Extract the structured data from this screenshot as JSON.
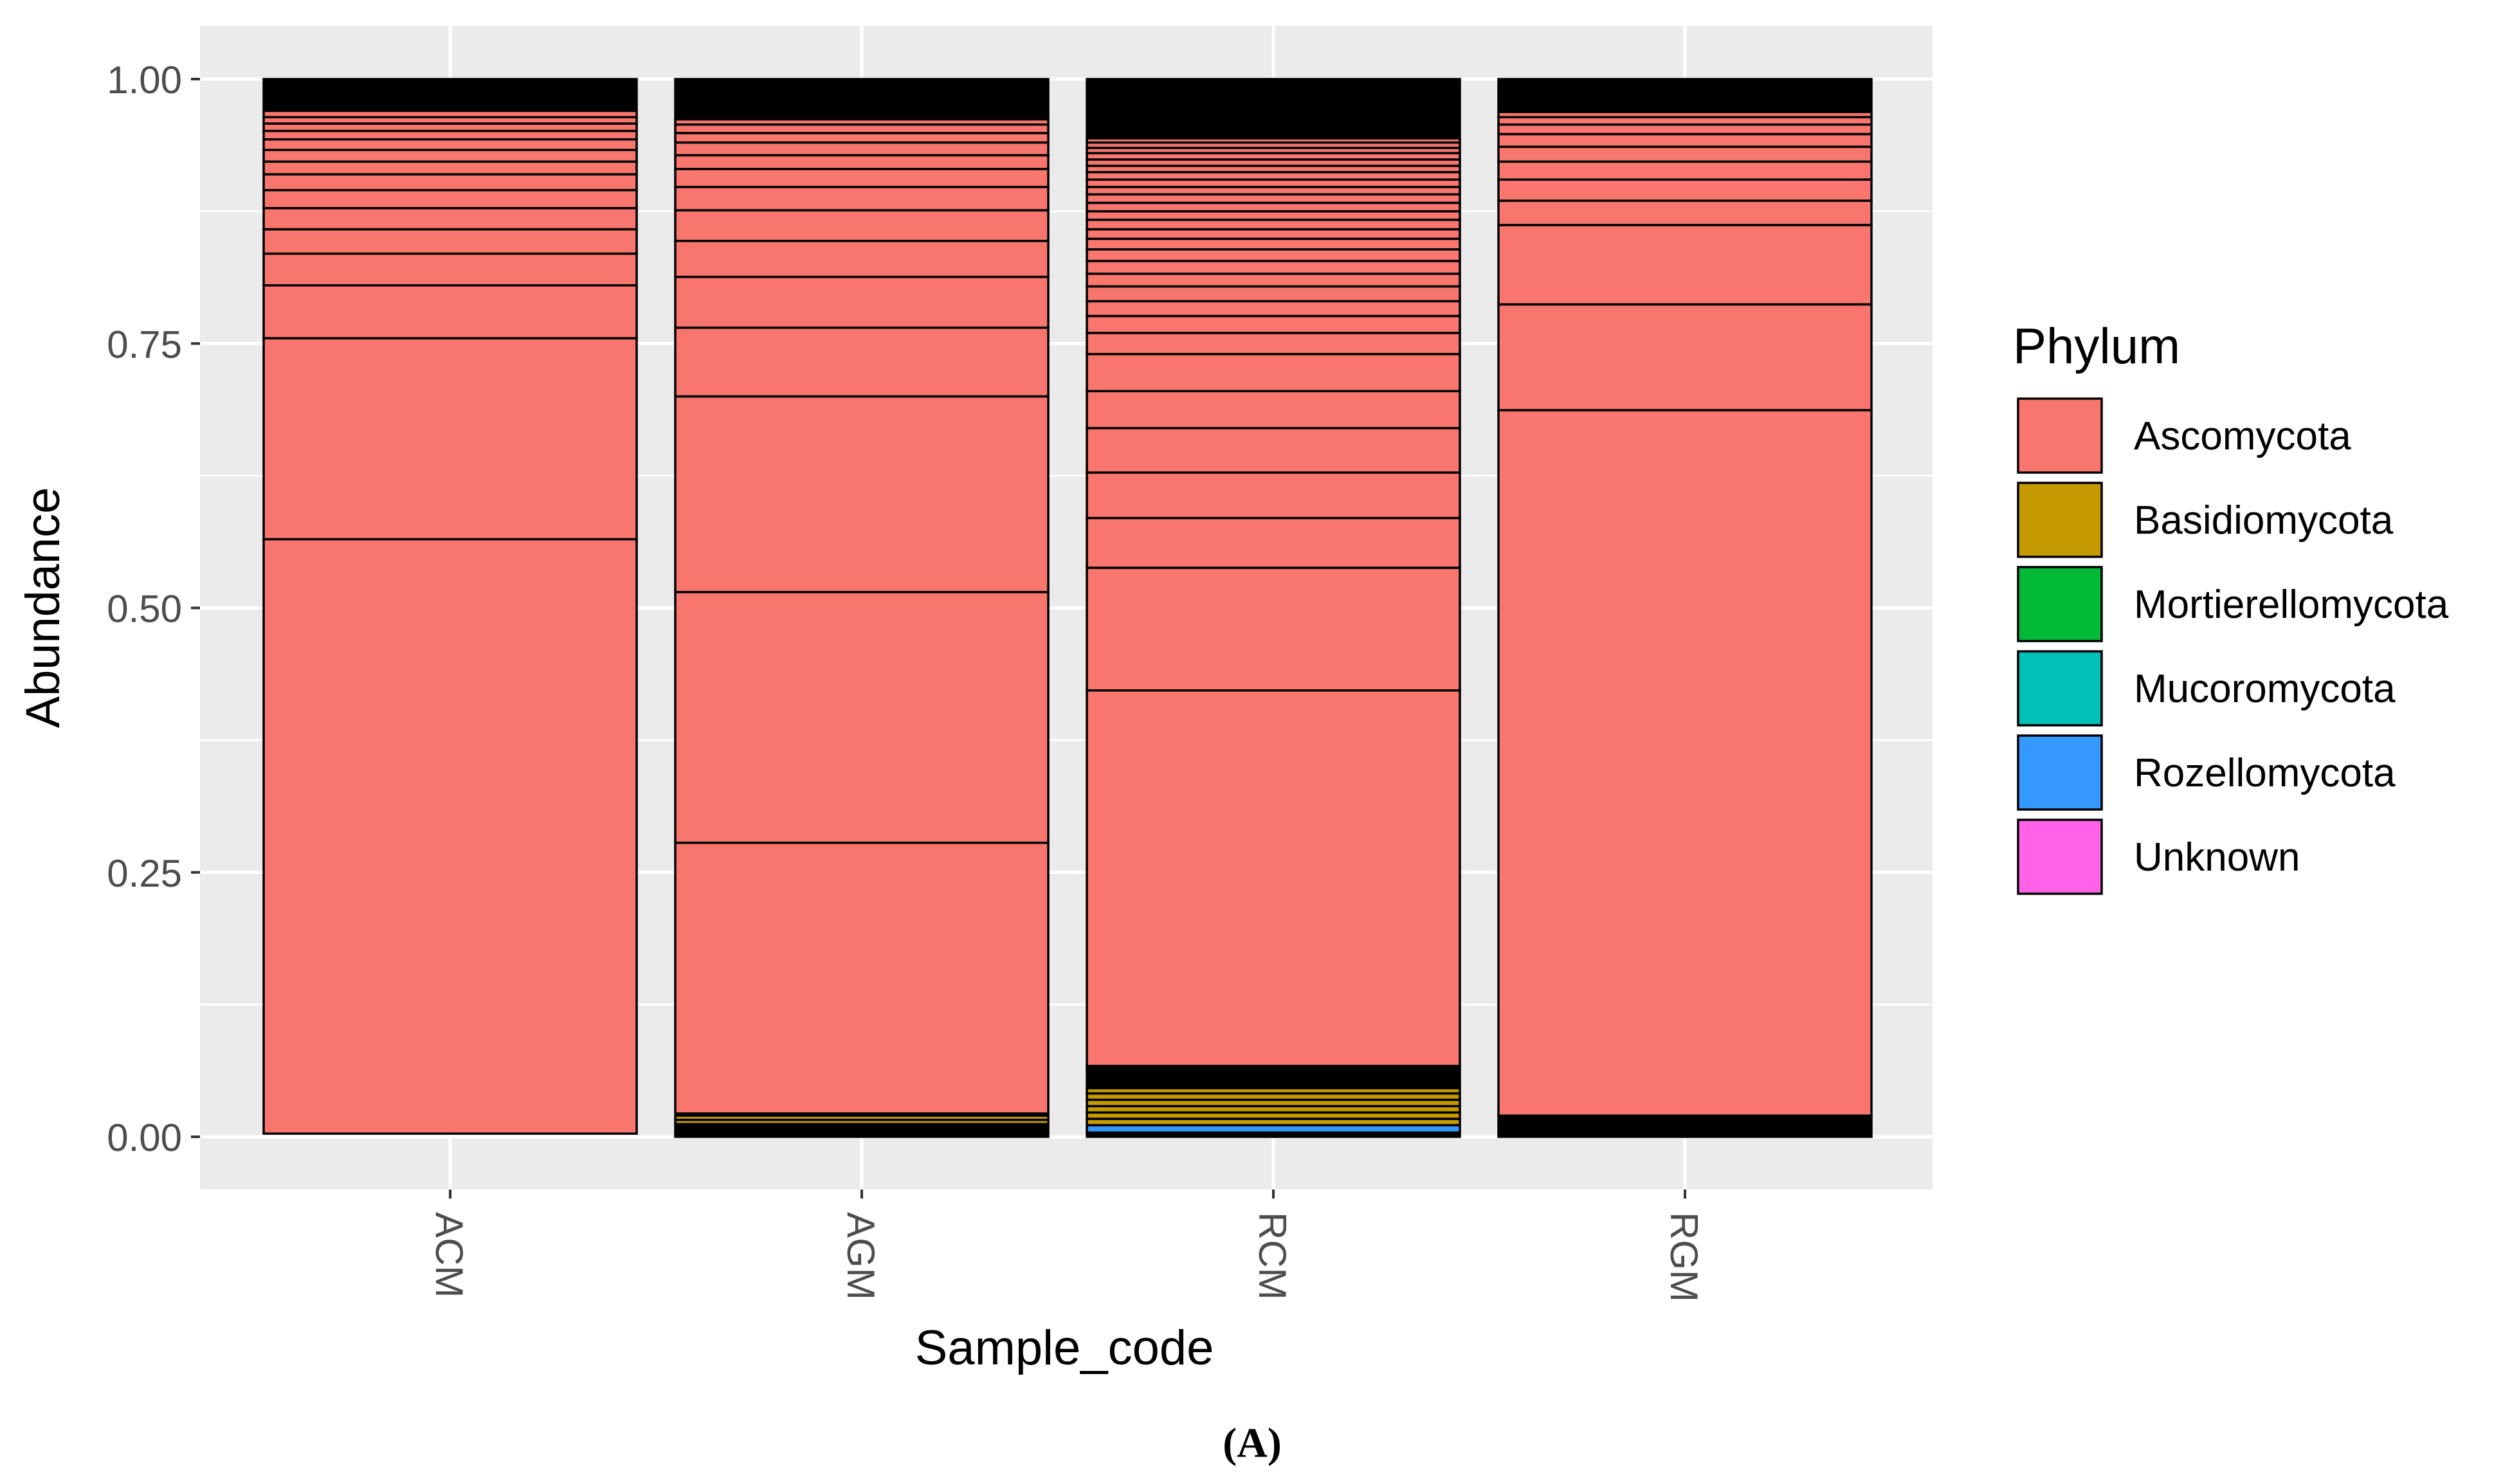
{
  "chart_data": {
    "type": "bar",
    "stacked": true,
    "xlabel": "Sample_code",
    "ylabel": "Abundance",
    "ylim": [
      0,
      1
    ],
    "yticks": [
      "0.00",
      "0.25",
      "0.50",
      "0.75",
      "1.00"
    ],
    "categories": [
      "ACM",
      "AGM",
      "RCM",
      "RGM"
    ],
    "panel_label": "(A)",
    "legend": {
      "title": "Phylum",
      "position": "right",
      "entries": [
        {
          "name": "Ascomycota",
          "color": "#F8766D"
        },
        {
          "name": "Basidiomycota",
          "color": "#C49A00"
        },
        {
          "name": "Mortierellomycota",
          "color": "#00BA38"
        },
        {
          "name": "Mucoromycota",
          "color": "#00C0B8"
        },
        {
          "name": "Rozellomycota",
          "color": "#3399FF"
        },
        {
          "name": "Unknown",
          "color": "#FF61E8"
        }
      ]
    },
    "stacks": [
      {
        "sample": "ACM",
        "segments": [
          {
            "phylum": "Ascomycota",
            "from": 0.003,
            "to": 0.565
          },
          {
            "phylum": "Ascomycota",
            "from": 0.565,
            "to": 0.755
          },
          {
            "phylum": "Ascomycota",
            "from": 0.755,
            "to": 0.805
          },
          {
            "phylum": "Ascomycota",
            "from": 0.805,
            "to": 0.835
          },
          {
            "phylum": "Ascomycota",
            "from": 0.835,
            "to": 0.858
          },
          {
            "phylum": "Ascomycota",
            "from": 0.858,
            "to": 0.878
          },
          {
            "phylum": "Ascomycota",
            "from": 0.878,
            "to": 0.895
          },
          {
            "phylum": "Ascomycota",
            "from": 0.895,
            "to": 0.91
          },
          {
            "phylum": "Ascomycota",
            "from": 0.91,
            "to": 0.922
          },
          {
            "phylum": "Ascomycota",
            "from": 0.922,
            "to": 0.933
          },
          {
            "phylum": "Ascomycota",
            "from": 0.933,
            "to": 0.943
          },
          {
            "phylum": "Ascomycota",
            "from": 0.943,
            "to": 0.951
          },
          {
            "phylum": "Ascomycota",
            "from": 0.951,
            "to": 0.958
          },
          {
            "phylum": "Ascomycota",
            "from": 0.958,
            "to": 0.964
          },
          {
            "phylum": "Ascomycota",
            "from": 0.964,
            "to": 0.97
          },
          {
            "phylum": "Unknown",
            "from": 0.97,
            "to": 1.0
          }
        ]
      },
      {
        "sample": "AGM",
        "segments": [
          {
            "phylum": "Unknown",
            "from": 0.0,
            "to": 0.012
          },
          {
            "phylum": "Basidiomycota",
            "from": 0.012,
            "to": 0.016
          },
          {
            "phylum": "Basidiomycota",
            "from": 0.016,
            "to": 0.02
          },
          {
            "phylum": "Ascomycota",
            "from": 0.022,
            "to": 0.278
          },
          {
            "phylum": "Ascomycota",
            "from": 0.278,
            "to": 0.515
          },
          {
            "phylum": "Ascomycota",
            "from": 0.515,
            "to": 0.7
          },
          {
            "phylum": "Ascomycota",
            "from": 0.7,
            "to": 0.765
          },
          {
            "phylum": "Ascomycota",
            "from": 0.765,
            "to": 0.813
          },
          {
            "phylum": "Ascomycota",
            "from": 0.813,
            "to": 0.847
          },
          {
            "phylum": "Ascomycota",
            "from": 0.847,
            "to": 0.876
          },
          {
            "phylum": "Ascomycota",
            "from": 0.876,
            "to": 0.898
          },
          {
            "phylum": "Ascomycota",
            "from": 0.898,
            "to": 0.915
          },
          {
            "phylum": "Ascomycota",
            "from": 0.915,
            "to": 0.928
          },
          {
            "phylum": "Ascomycota",
            "from": 0.928,
            "to": 0.94
          },
          {
            "phylum": "Ascomycota",
            "from": 0.94,
            "to": 0.949
          },
          {
            "phylum": "Ascomycota",
            "from": 0.949,
            "to": 0.957
          },
          {
            "phylum": "Ascomycota",
            "from": 0.957,
            "to": 0.962
          },
          {
            "phylum": "Unknown",
            "from": 0.962,
            "to": 1.0
          }
        ]
      },
      {
        "sample": "RCM",
        "segments": [
          {
            "phylum": "Unknown",
            "from": 0.0,
            "to": 0.004
          },
          {
            "phylum": "Rozellomycota",
            "from": 0.004,
            "to": 0.011
          },
          {
            "phylum": "Basidiomycota",
            "from": 0.011,
            "to": 0.017
          },
          {
            "phylum": "Basidiomycota",
            "from": 0.017,
            "to": 0.023
          },
          {
            "phylum": "Basidiomycota",
            "from": 0.023,
            "to": 0.029
          },
          {
            "phylum": "Basidiomycota",
            "from": 0.029,
            "to": 0.035
          },
          {
            "phylum": "Basidiomycota",
            "from": 0.035,
            "to": 0.041
          },
          {
            "phylum": "Basidiomycota",
            "from": 0.041,
            "to": 0.046
          },
          {
            "phylum": "Unknown",
            "from": 0.046,
            "to": 0.067
          },
          {
            "phylum": "Ascomycota",
            "from": 0.067,
            "to": 0.422
          },
          {
            "phylum": "Ascomycota",
            "from": 0.422,
            "to": 0.538
          },
          {
            "phylum": "Ascomycota",
            "from": 0.538,
            "to": 0.585
          },
          {
            "phylum": "Ascomycota",
            "from": 0.585,
            "to": 0.628
          },
          {
            "phylum": "Ascomycota",
            "from": 0.628,
            "to": 0.67
          },
          {
            "phylum": "Ascomycota",
            "from": 0.67,
            "to": 0.705
          },
          {
            "phylum": "Ascomycota",
            "from": 0.705,
            "to": 0.74
          },
          {
            "phylum": "Ascomycota",
            "from": 0.74,
            "to": 0.76
          },
          {
            "phylum": "Ascomycota",
            "from": 0.76,
            "to": 0.776
          },
          {
            "phylum": "Ascomycota",
            "from": 0.776,
            "to": 0.79
          },
          {
            "phylum": "Ascomycota",
            "from": 0.79,
            "to": 0.804
          },
          {
            "phylum": "Ascomycota",
            "from": 0.804,
            "to": 0.816
          },
          {
            "phylum": "Ascomycota",
            "from": 0.816,
            "to": 0.828
          },
          {
            "phylum": "Ascomycota",
            "from": 0.828,
            "to": 0.839
          },
          {
            "phylum": "Ascomycota",
            "from": 0.839,
            "to": 0.849
          },
          {
            "phylum": "Ascomycota",
            "from": 0.849,
            "to": 0.858
          },
          {
            "phylum": "Ascomycota",
            "from": 0.858,
            "to": 0.867
          },
          {
            "phylum": "Ascomycota",
            "from": 0.867,
            "to": 0.875
          },
          {
            "phylum": "Ascomycota",
            "from": 0.875,
            "to": 0.883
          },
          {
            "phylum": "Ascomycota",
            "from": 0.883,
            "to": 0.891
          },
          {
            "phylum": "Ascomycota",
            "from": 0.891,
            "to": 0.898
          },
          {
            "phylum": "Ascomycota",
            "from": 0.898,
            "to": 0.905
          },
          {
            "phylum": "Ascomycota",
            "from": 0.905,
            "to": 0.912
          },
          {
            "phylum": "Ascomycota",
            "from": 0.912,
            "to": 0.918
          },
          {
            "phylum": "Ascomycota",
            "from": 0.918,
            "to": 0.924
          },
          {
            "phylum": "Ascomycota",
            "from": 0.924,
            "to": 0.93
          },
          {
            "phylum": "Ascomycota",
            "from": 0.93,
            "to": 0.935
          },
          {
            "phylum": "Ascomycota",
            "from": 0.935,
            "to": 0.94
          },
          {
            "phylum": "Ascomycota",
            "from": 0.94,
            "to": 0.944
          },
          {
            "phylum": "Unknown",
            "from": 0.944,
            "to": 1.0
          }
        ]
      },
      {
        "sample": "RGM",
        "segments": [
          {
            "phylum": "Unknown",
            "from": 0.0,
            "to": 0.02
          },
          {
            "phylum": "Ascomycota",
            "from": 0.02,
            "to": 0.687
          },
          {
            "phylum": "Ascomycota",
            "from": 0.687,
            "to": 0.787
          },
          {
            "phylum": "Ascomycota",
            "from": 0.787,
            "to": 0.862
          },
          {
            "phylum": "Ascomycota",
            "from": 0.862,
            "to": 0.885
          },
          {
            "phylum": "Ascomycota",
            "from": 0.885,
            "to": 0.905
          },
          {
            "phylum": "Ascomycota",
            "from": 0.905,
            "to": 0.922
          },
          {
            "phylum": "Ascomycota",
            "from": 0.922,
            "to": 0.936
          },
          {
            "phylum": "Ascomycota",
            "from": 0.936,
            "to": 0.948
          },
          {
            "phylum": "Ascomycota",
            "from": 0.948,
            "to": 0.957
          },
          {
            "phylum": "Ascomycota",
            "from": 0.957,
            "to": 0.964
          },
          {
            "phylum": "Ascomycota",
            "from": 0.964,
            "to": 0.969
          },
          {
            "phylum": "Unknown",
            "from": 0.969,
            "to": 1.0
          }
        ]
      }
    ]
  },
  "colors": {
    "panel_background": "#EBEBEB",
    "grid": "#FFFFFF",
    "axis_text": "#4D4D4D",
    "unknown_bar": "#000000"
  }
}
